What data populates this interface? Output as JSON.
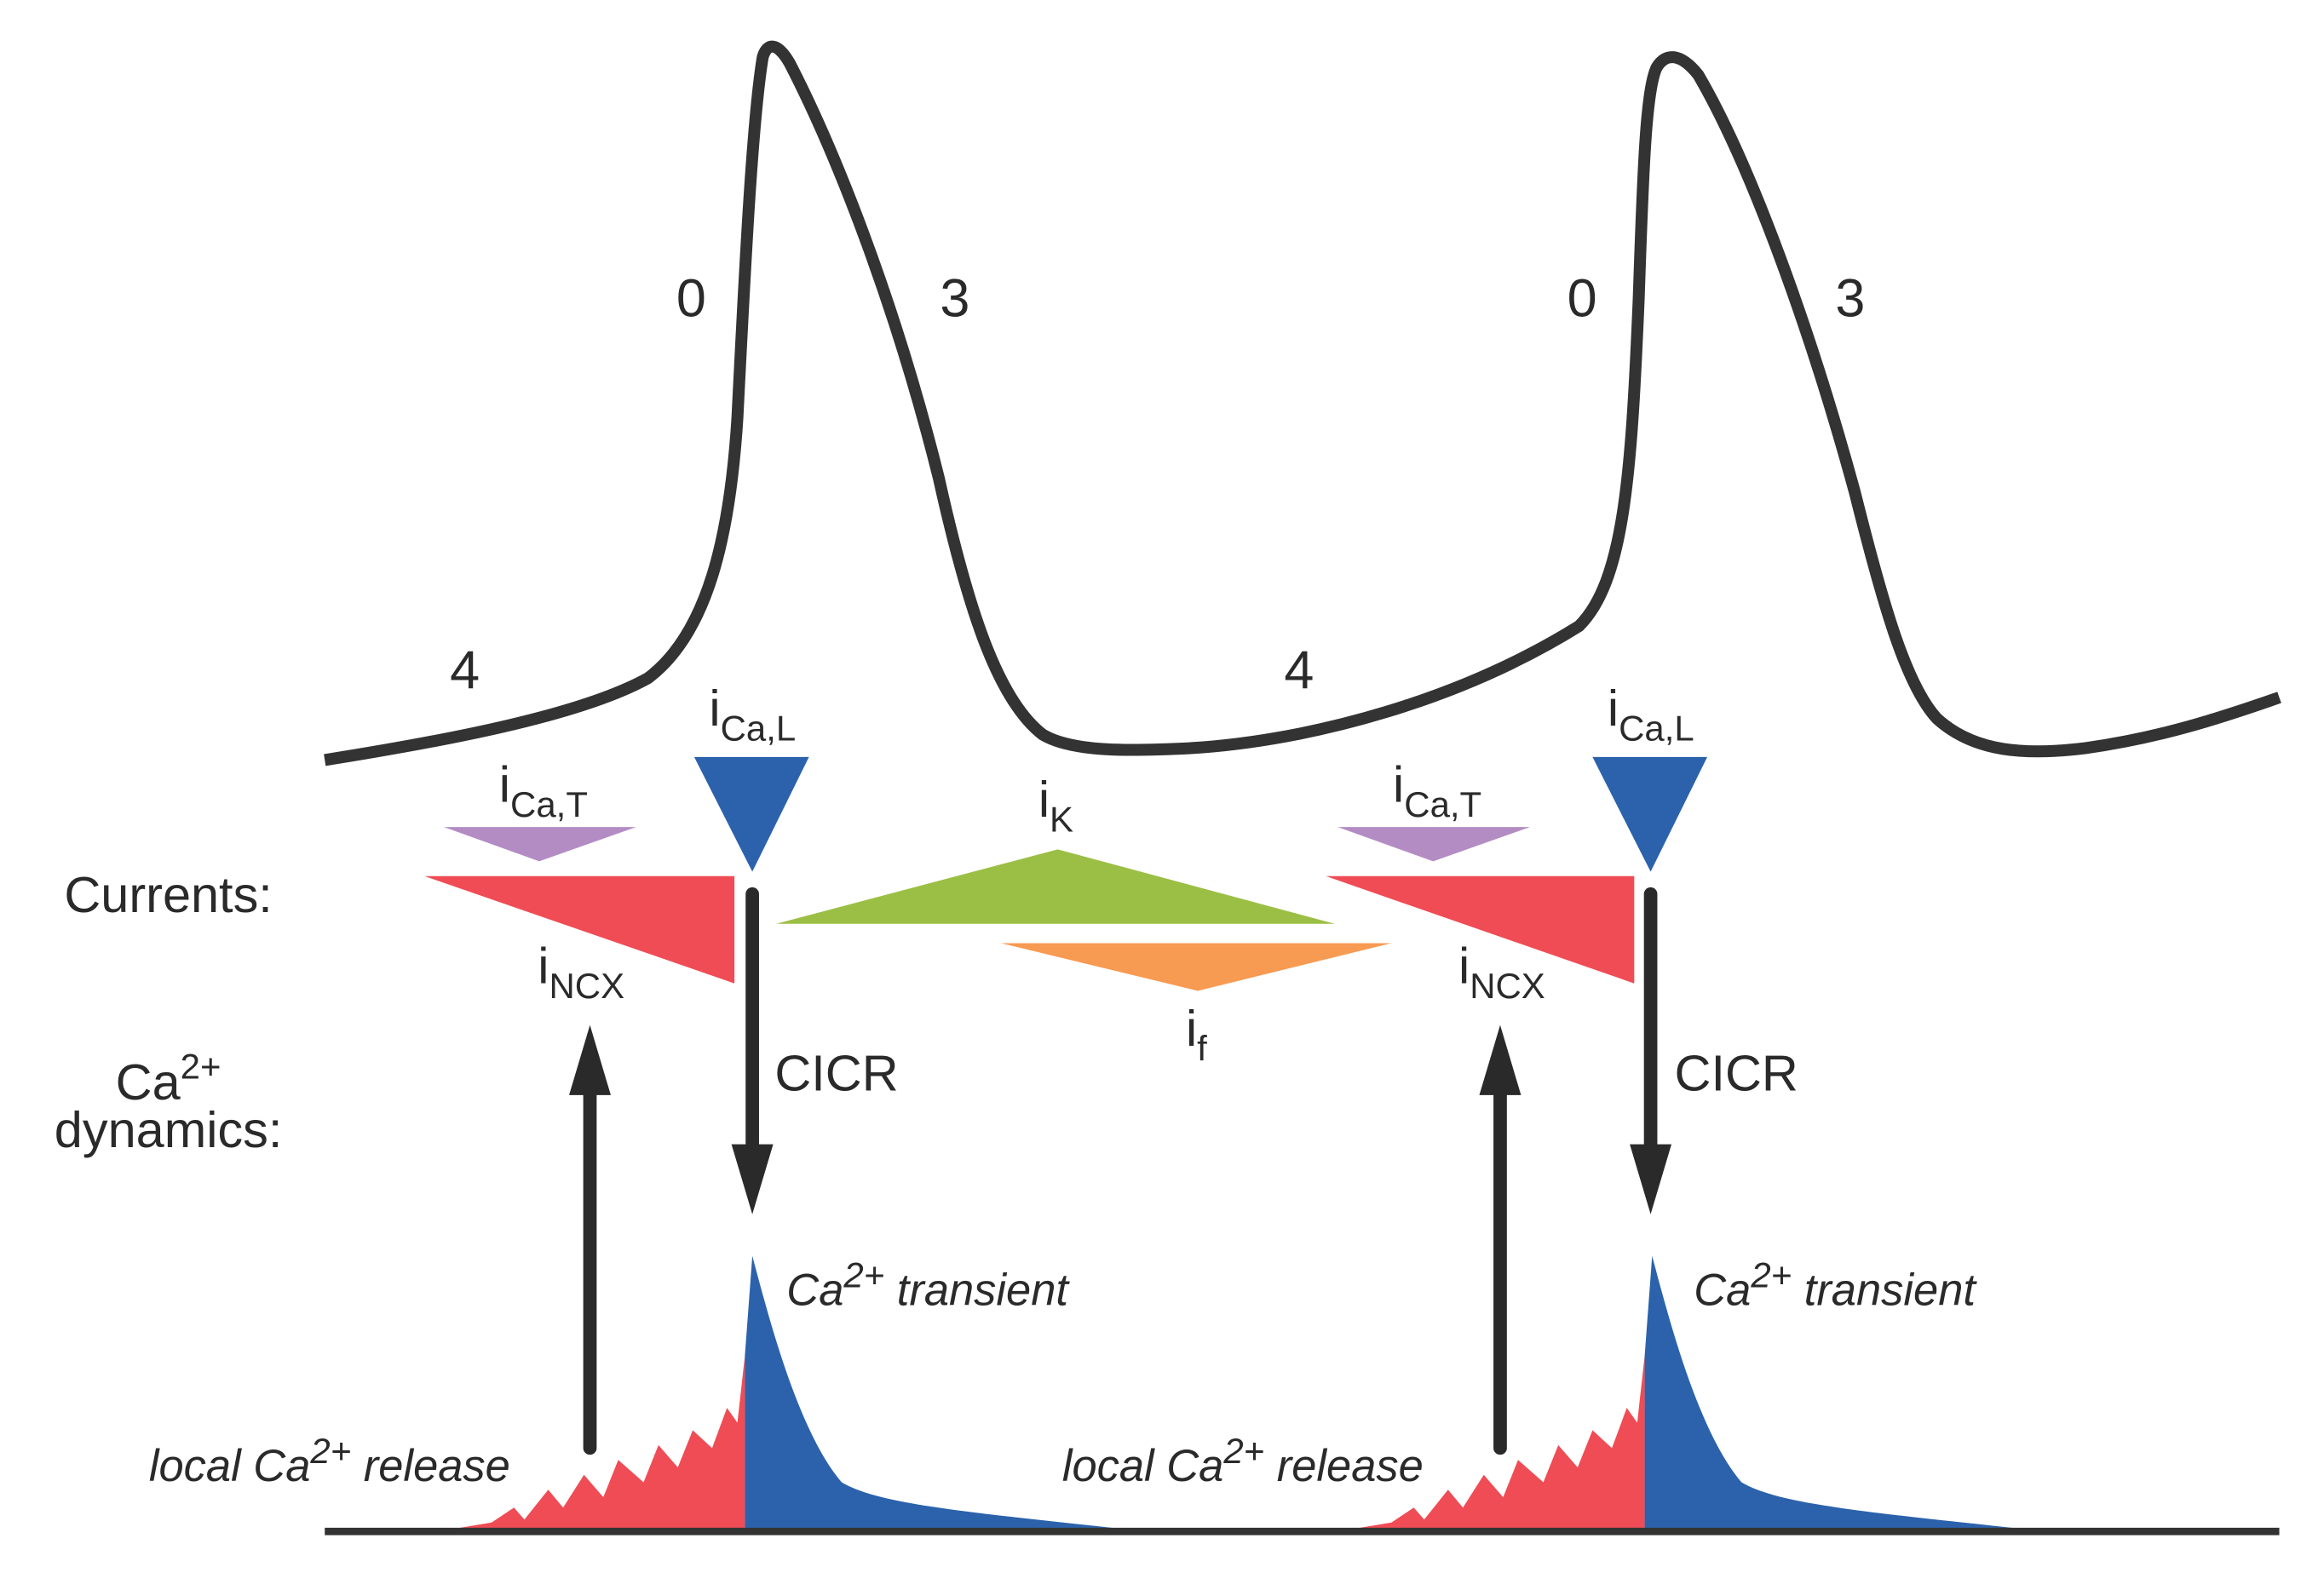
{
  "colors": {
    "trace": "#333333",
    "i_ca_l": "#2b62ab",
    "i_ca_t": "#b48cc4",
    "i_ncx": "#ef4c55",
    "i_k": "#9bbf45",
    "i_f": "#f79a52",
    "ca_transient": "#2b62ab",
    "local_release": "#ef4c55"
  },
  "row_labels": {
    "currents": "Currents:",
    "ca_line1": "Ca",
    "ca_sup": "2+",
    "ca_line2": "dynamics:"
  },
  "phases": [
    "4",
    "0",
    "3"
  ],
  "currents": {
    "i": "i",
    "ca_l": "Ca,L",
    "ca_t": "Ca,T",
    "ncx": "NCX",
    "k": "K",
    "f": "f"
  },
  "cicr": "CICR",
  "ca_transient": {
    "pre": "Ca",
    "sup": "2+",
    "post": " transient"
  },
  "local_release": {
    "pre": "local Ca",
    "sup": "2+",
    "post": " release"
  }
}
